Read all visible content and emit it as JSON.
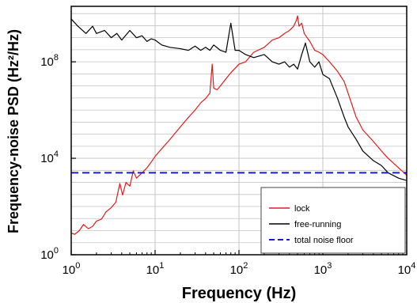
{
  "chart_data": {
    "type": "line",
    "xlabel": "Frequency (Hz)",
    "ylabel": "Frequency-noise PSD (Hz²/Hz)",
    "x_scale": "log",
    "y_scale": "log",
    "xlim": [
      1,
      10000
    ],
    "ylim": [
      1,
      20000000000
    ],
    "grid": true,
    "legend_position": "bottom-right",
    "x_ticks": [
      {
        "value": 1,
        "mant": "10",
        "exp": "0"
      },
      {
        "value": 10,
        "mant": "10",
        "exp": "1"
      },
      {
        "value": 100,
        "mant": "10",
        "exp": "2"
      },
      {
        "value": 1000,
        "mant": "10",
        "exp": "3"
      },
      {
        "value": 10000,
        "mant": "10",
        "exp": "4"
      }
    ],
    "y_ticks": [
      {
        "value": 1,
        "mant": "10",
        "exp": "0"
      },
      {
        "value": 10000,
        "mant": "10",
        "exp": "4"
      },
      {
        "value": 100000000,
        "mant": "10",
        "exp": "8"
      }
    ],
    "series": [
      {
        "name": "lock",
        "color": "#e41a1c",
        "style": "solid",
        "points": [
          [
            1.0,
            8
          ],
          [
            1.1,
            7
          ],
          [
            1.25,
            10
          ],
          [
            1.4,
            18
          ],
          [
            1.6,
            12
          ],
          [
            1.8,
            15
          ],
          [
            2.0,
            25
          ],
          [
            2.3,
            30
          ],
          [
            2.6,
            60
          ],
          [
            3.0,
            90
          ],
          [
            3.4,
            150
          ],
          [
            3.8,
            900
          ],
          [
            4.1,
            300
          ],
          [
            4.5,
            1000
          ],
          [
            5.0,
            700
          ],
          [
            5.5,
            3000
          ],
          [
            6.0,
            1500
          ],
          [
            7.0,
            2500
          ],
          [
            8.0,
            4000
          ],
          [
            9.0,
            7000
          ],
          [
            10,
            12000
          ],
          [
            12,
            25000
          ],
          [
            15,
            60000
          ],
          [
            20,
            200000
          ],
          [
            25,
            500000
          ],
          [
            30,
            1000000
          ],
          [
            35,
            2000000
          ],
          [
            40,
            3000000
          ],
          [
            45,
            5000000
          ],
          [
            48,
            80000000
          ],
          [
            50,
            8000000
          ],
          [
            55,
            7000000
          ],
          [
            60,
            10000000
          ],
          [
            70,
            20000000
          ],
          [
            80,
            35000000
          ],
          [
            100,
            80000000
          ],
          [
            120,
            100000000
          ],
          [
            150,
            250000000
          ],
          [
            200,
            400000000
          ],
          [
            250,
            800000000
          ],
          [
            300,
            1000000000
          ],
          [
            350,
            1500000000
          ],
          [
            400,
            2000000000
          ],
          [
            450,
            3000000000
          ],
          [
            480,
            5000000000
          ],
          [
            500,
            8000000000
          ],
          [
            520,
            3000000000
          ],
          [
            560,
            4000000000
          ],
          [
            600,
            1500000000
          ],
          [
            650,
            1000000000
          ],
          [
            700,
            700000000
          ],
          [
            800,
            300000000
          ],
          [
            900,
            250000000
          ],
          [
            1000,
            200000000
          ],
          [
            1200,
            100000000
          ],
          [
            1500,
            40000000
          ],
          [
            1800,
            15000000
          ],
          [
            2000,
            5000000
          ],
          [
            2500,
            500000
          ],
          [
            3000,
            150000
          ],
          [
            4000,
            50000
          ],
          [
            5000,
            20000
          ],
          [
            6000,
            10000
          ],
          [
            8000,
            4000
          ],
          [
            10000,
            2000
          ]
        ]
      },
      {
        "name": "free-running",
        "color": "#000000",
        "style": "solid",
        "points": [
          [
            1.0,
            6000000000
          ],
          [
            1.2,
            3000000000
          ],
          [
            1.5,
            1500000000
          ],
          [
            1.8,
            3000000000
          ],
          [
            2.0,
            1500000000
          ],
          [
            2.5,
            2000000000
          ],
          [
            3.0,
            1000000000
          ],
          [
            3.5,
            1500000000
          ],
          [
            4.0,
            800000000
          ],
          [
            5.0,
            2000000000
          ],
          [
            6.0,
            1000000000
          ],
          [
            7.0,
            1200000000
          ],
          [
            8.0,
            700000000
          ],
          [
            9.0,
            900000000
          ],
          [
            10,
            800000000
          ],
          [
            12,
            500000000
          ],
          [
            15,
            400000000
          ],
          [
            20,
            350000000
          ],
          [
            25,
            300000000
          ],
          [
            30,
            450000000
          ],
          [
            35,
            300000000
          ],
          [
            40,
            400000000
          ],
          [
            45,
            300000000
          ],
          [
            50,
            500000000
          ],
          [
            60,
            300000000
          ],
          [
            70,
            250000000
          ],
          [
            80,
            4000000000
          ],
          [
            90,
            300000000
          ],
          [
            100,
            300000000
          ],
          [
            120,
            200000000
          ],
          [
            150,
            150000000
          ],
          [
            200,
            200000000
          ],
          [
            250,
            100000000
          ],
          [
            300,
            80000000
          ],
          [
            350,
            100000000
          ],
          [
            400,
            60000000
          ],
          [
            450,
            80000000
          ],
          [
            500,
            50000000
          ],
          [
            560,
            200000000
          ],
          [
            620,
            600000000
          ],
          [
            700,
            100000000
          ],
          [
            800,
            60000000
          ],
          [
            900,
            100000000
          ],
          [
            1000,
            30000000
          ],
          [
            1200,
            20000000
          ],
          [
            1500,
            3000000
          ],
          [
            1800,
            500000
          ],
          [
            2000,
            200000
          ],
          [
            2500,
            60000
          ],
          [
            3000,
            20000
          ],
          [
            4000,
            8000
          ],
          [
            5000,
            5000
          ],
          [
            6000,
            2500
          ],
          [
            8000,
            1500
          ],
          [
            10000,
            1200
          ]
        ]
      },
      {
        "name": "total noise floor",
        "color": "#1c1ccc",
        "style": "dashed",
        "points": [
          [
            1,
            2500
          ],
          [
            10000,
            2500
          ]
        ]
      }
    ]
  }
}
